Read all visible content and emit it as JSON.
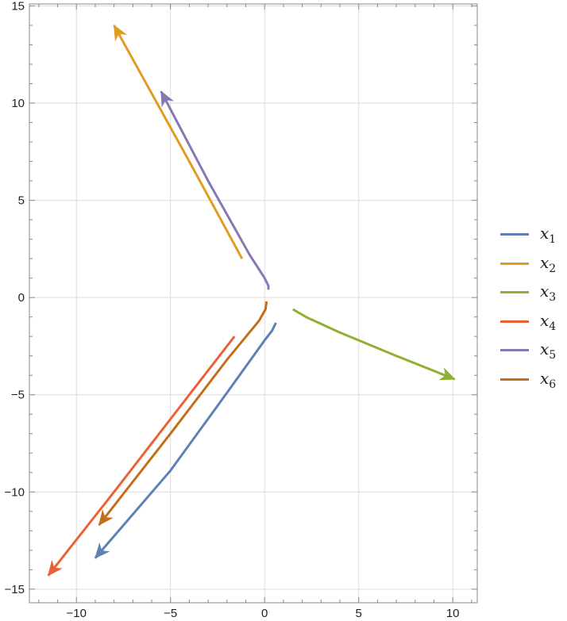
{
  "chart_data": {
    "type": "line",
    "title": "",
    "xlabel": "",
    "ylabel": "",
    "xlim": [
      -12.5,
      11.3
    ],
    "ylim": [
      -15.7,
      15.1
    ],
    "x_ticks": [
      -10,
      -5,
      0,
      5,
      10
    ],
    "y_ticks": [
      -15,
      -10,
      -5,
      0,
      5,
      10,
      15
    ],
    "x_tick_labels": [
      "−10",
      "−5",
      "0",
      "5",
      "10"
    ],
    "y_tick_labels": [
      "−15",
      "−10",
      "−5",
      "0",
      "5",
      "10",
      "15"
    ],
    "grid": true,
    "legend_position": "right",
    "series": [
      {
        "name": "x",
        "sub": "1",
        "color": "#5E81B5",
        "points": [
          [
            0.6,
            -1.3
          ],
          [
            0.4,
            -1.7
          ],
          [
            0,
            -2.2
          ],
          [
            -2,
            -4.9
          ],
          [
            -5,
            -8.9
          ],
          [
            -9,
            -13.4
          ]
        ]
      },
      {
        "name": "x",
        "sub": "2",
        "color": "#E19C24",
        "points": [
          [
            -1.2,
            2.0
          ],
          [
            -4,
            7.0
          ],
          [
            -6,
            10.5
          ],
          [
            -8,
            14.0
          ]
        ]
      },
      {
        "name": "x",
        "sub": "3",
        "color": "#8FB032",
        "points": [
          [
            1.5,
            -0.6
          ],
          [
            2.2,
            -1.0
          ],
          [
            4,
            -1.8
          ],
          [
            7,
            -3.0
          ],
          [
            10.1,
            -4.2
          ]
        ]
      },
      {
        "name": "x",
        "sub": "4",
        "color": "#EB6235",
        "points": [
          [
            -1.6,
            -2.0
          ],
          [
            -4,
            -5.0
          ],
          [
            -8,
            -10.0
          ],
          [
            -11.5,
            -14.3
          ]
        ]
      },
      {
        "name": "x",
        "sub": "5",
        "color": "#8778B3",
        "points": [
          [
            0.2,
            0.4
          ],
          [
            0.2,
            0.6
          ],
          [
            0,
            1.0
          ],
          [
            -0.8,
            2.2
          ],
          [
            -3,
            6.0
          ],
          [
            -5.5,
            10.6
          ]
        ]
      },
      {
        "name": "x",
        "sub": "6",
        "color": "#C56E1A",
        "points": [
          [
            0.1,
            -0.2
          ],
          [
            0.05,
            -0.6
          ],
          [
            -0.3,
            -1.2
          ],
          [
            -2,
            -3.2
          ],
          [
            -5,
            -7.0
          ],
          [
            -8.8,
            -11.7
          ]
        ]
      }
    ]
  }
}
